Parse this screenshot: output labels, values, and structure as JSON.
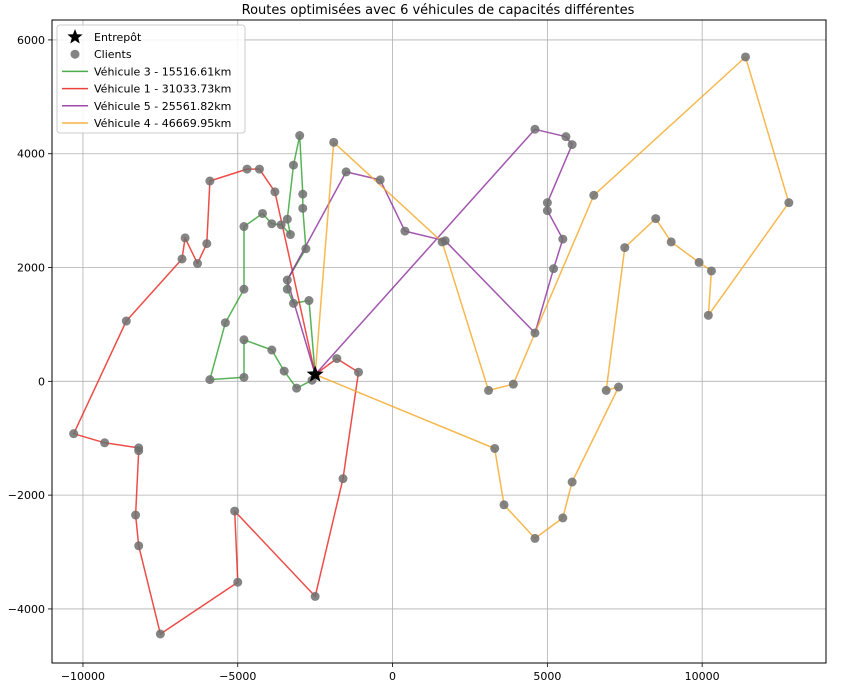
{
  "chart_data": {
    "type": "line",
    "title": "Routes optimisées avec 6 véhicules de capacités différentes",
    "xlabel": "",
    "ylabel": "",
    "xlim": [
      -11000,
      14000
    ],
    "ylim": [
      -4950,
      6350
    ],
    "x_ticks": [
      -10000,
      -5000,
      0,
      5000,
      10000
    ],
    "y_ticks": [
      -4000,
      -2000,
      0,
      2000,
      4000,
      6000
    ],
    "x_tick_labels": [
      "−10000",
      "−5000",
      "0",
      "5000",
      "10000"
    ],
    "y_tick_labels": [
      "−4000",
      "−2000",
      "0",
      "2000",
      "4000",
      "6000"
    ],
    "grid": true,
    "legend_position": "top-left",
    "depot": {
      "label": "Entrepôt",
      "x": -2500,
      "y": 120
    },
    "clients_label": "Clients",
    "series": [
      {
        "name": "Véhicule 3 - 15516.61km",
        "color": "#2ca02c",
        "points": [
          [
            -2500,
            120
          ],
          [
            -2700,
            1420
          ],
          [
            -3200,
            1370
          ],
          [
            -3400,
            1620
          ],
          [
            -3400,
            1780
          ],
          [
            -2800,
            2330
          ],
          [
            -2900,
            3040
          ],
          [
            -2900,
            3290
          ],
          [
            -3000,
            4320
          ],
          [
            -3200,
            3800
          ],
          [
            -3400,
            2850
          ],
          [
            -3300,
            2580
          ],
          [
            -3600,
            2750
          ],
          [
            -3900,
            2770
          ],
          [
            -4200,
            2950
          ],
          [
            -4800,
            2720
          ],
          [
            -4800,
            1620
          ],
          [
            -5400,
            1030
          ],
          [
            -5900,
            30
          ],
          [
            -4800,
            70
          ],
          [
            -4800,
            730
          ],
          [
            -3900,
            550
          ],
          [
            -3500,
            180
          ],
          [
            -3100,
            -120
          ],
          [
            -2600,
            20
          ],
          [
            -2500,
            120
          ]
        ]
      },
      {
        "name": "Véhicule 1 - 31033.73km",
        "color": "#e8211a",
        "points": [
          [
            -2500,
            120
          ],
          [
            -3800,
            3330
          ],
          [
            -4300,
            3730
          ],
          [
            -4700,
            3730
          ],
          [
            -5900,
            3520
          ],
          [
            -6000,
            2420
          ],
          [
            -6300,
            2070
          ],
          [
            -6700,
            2520
          ],
          [
            -6800,
            2150
          ],
          [
            -8600,
            1060
          ],
          [
            -10300,
            -920
          ],
          [
            -9300,
            -1080
          ],
          [
            -8200,
            -1170
          ],
          [
            -8200,
            -1220
          ],
          [
            -8300,
            -2350
          ],
          [
            -8200,
            -2890
          ],
          [
            -7500,
            -4440
          ],
          [
            -5000,
            -3530
          ],
          [
            -5100,
            -2280
          ],
          [
            -2500,
            -3780
          ],
          [
            -1600,
            -1710
          ],
          [
            -1100,
            160
          ],
          [
            -1800,
            400
          ],
          [
            -2500,
            120
          ]
        ]
      },
      {
        "name": "Véhicule 5 - 25561.82km",
        "color": "#8b2c9a",
        "points": [
          [
            -2500,
            120
          ],
          [
            -3400,
            1780
          ],
          [
            -1500,
            3680
          ],
          [
            -400,
            3540
          ],
          [
            400,
            2640
          ],
          [
            1700,
            2470
          ],
          [
            4600,
            850
          ],
          [
            5200,
            1980
          ],
          [
            5500,
            2500
          ],
          [
            5000,
            3000
          ],
          [
            5000,
            3140
          ],
          [
            5800,
            4160
          ],
          [
            5600,
            4300
          ],
          [
            4600,
            4430
          ],
          [
            -2500,
            120
          ]
        ]
      },
      {
        "name": "Véhicule 4 - 46669.95km",
        "color": "#f5a623",
        "points": [
          [
            -2500,
            120
          ],
          [
            3300,
            -1180
          ],
          [
            3600,
            -2170
          ],
          [
            4600,
            -2760
          ],
          [
            5500,
            -2400
          ],
          [
            5800,
            -1770
          ],
          [
            7300,
            -100
          ],
          [
            6900,
            -160
          ],
          [
            7500,
            2350
          ],
          [
            8500,
            2860
          ],
          [
            9000,
            2450
          ],
          [
            9900,
            2090
          ],
          [
            10300,
            1940
          ],
          [
            10200,
            1160
          ],
          [
            12800,
            3140
          ],
          [
            11400,
            5700
          ],
          [
            6500,
            3270
          ],
          [
            4600,
            850
          ],
          [
            3900,
            -50
          ],
          [
            3100,
            -160
          ],
          [
            1600,
            2450
          ],
          [
            -1900,
            4200
          ],
          [
            -2500,
            120
          ]
        ]
      }
    ]
  }
}
